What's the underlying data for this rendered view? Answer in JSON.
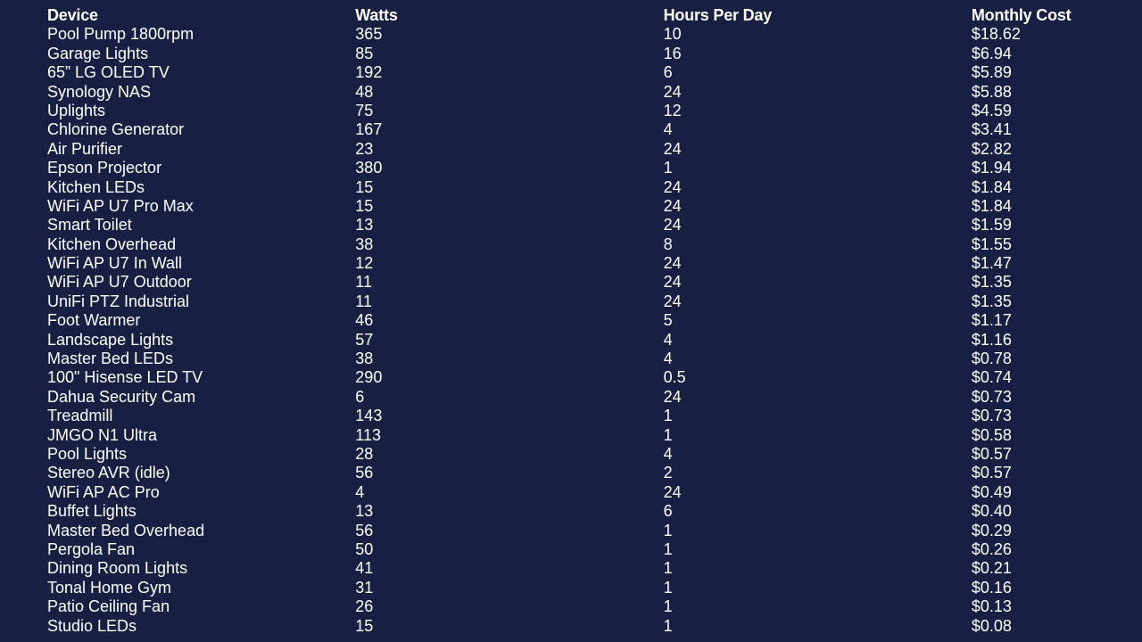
{
  "colors": {
    "background": "#172042",
    "text": "#ffffff"
  },
  "table": {
    "headers": [
      "Device",
      "Watts",
      "Hours Per Day",
      "Monthly Cost"
    ],
    "rows": [
      [
        "Pool Pump 1800rpm",
        "365",
        "10",
        "$18.62"
      ],
      [
        "Garage Lights",
        "85",
        "16",
        "$6.94"
      ],
      [
        "65” LG OLED TV",
        "192",
        "6",
        "$5.89"
      ],
      [
        "Synology NAS",
        "48",
        "24",
        "$5.88"
      ],
      [
        "Uplights",
        "75",
        "12",
        "$4.59"
      ],
      [
        "Chlorine Generator",
        "167",
        "4",
        "$3.41"
      ],
      [
        "Air Purifier",
        "23",
        "24",
        "$2.82"
      ],
      [
        "Epson Projector",
        "380",
        "1",
        "$1.94"
      ],
      [
        "Kitchen LEDs",
        "15",
        "24",
        "$1.84"
      ],
      [
        "WiFi AP U7 Pro Max",
        "15",
        "24",
        "$1.84"
      ],
      [
        "Smart Toilet",
        "13",
        "24",
        "$1.59"
      ],
      [
        "Kitchen Overhead",
        "38",
        "8",
        "$1.55"
      ],
      [
        "WiFi AP U7 In Wall",
        "12",
        "24",
        "$1.47"
      ],
      [
        "WiFi AP U7 Outdoor",
        "11",
        "24",
        "$1.35"
      ],
      [
        "UniFi PTZ Industrial",
        "11",
        "24",
        "$1.35"
      ],
      [
        "Foot Warmer",
        "46",
        "5",
        "$1.17"
      ],
      [
        "Landscape Lights",
        "57",
        "4",
        "$1.16"
      ],
      [
        "Master Bed LEDs",
        "38",
        "4",
        "$0.78"
      ],
      [
        "100\" Hisense LED TV",
        "290",
        "0.5",
        "$0.74"
      ],
      [
        "Dahua Security Cam",
        "6",
        "24",
        "$0.73"
      ],
      [
        "Treadmill",
        "143",
        "1",
        "$0.73"
      ],
      [
        "JMGO N1 Ultra",
        "113",
        "1",
        "$0.58"
      ],
      [
        "Pool Lights",
        "28",
        "4",
        "$0.57"
      ],
      [
        "Stereo AVR (idle)",
        "56",
        "2",
        "$0.57"
      ],
      [
        "WiFi AP AC Pro",
        "4",
        "24",
        "$0.49"
      ],
      [
        "Buffet Lights",
        "13",
        "6",
        "$0.40"
      ],
      [
        "Master Bed Overhead",
        "56",
        "1",
        "$0.29"
      ],
      [
        "Pergola Fan",
        "50",
        "1",
        "$0.26"
      ],
      [
        "Dining Room Lights",
        "41",
        "1",
        "$0.21"
      ],
      [
        "Tonal Home Gym",
        "31",
        "1",
        "$0.16"
      ],
      [
        "Patio Ceiling Fan",
        "26",
        "1",
        "$0.13"
      ],
      [
        "Studio LEDs",
        "15",
        "1",
        "$0.08"
      ]
    ]
  }
}
